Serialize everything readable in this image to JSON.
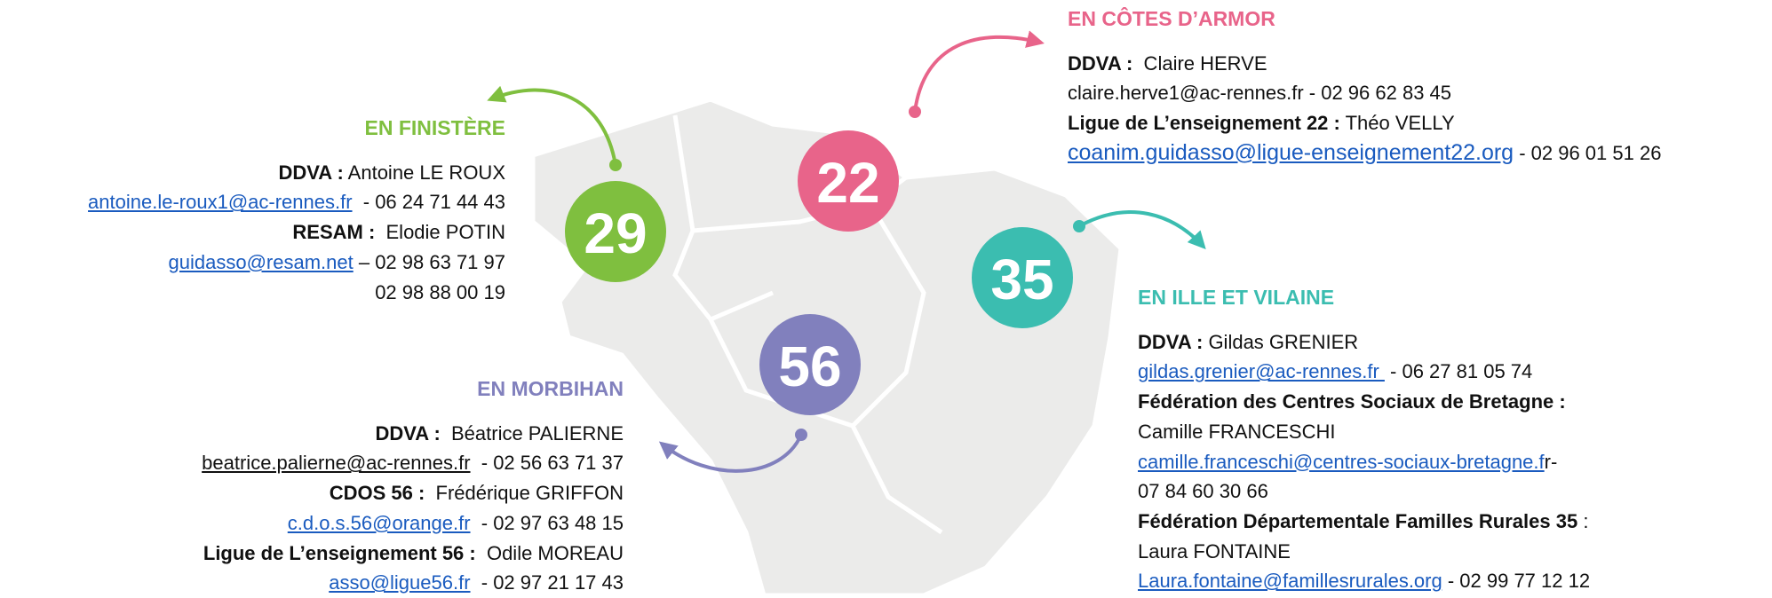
{
  "regions": [
    {
      "title": "EN FINISTÈRE",
      "badge": "29",
      "lines": [
        [
          {
            "b": "DDVA :"
          },
          {
            "t": " Antoine LE ROUX"
          }
        ],
        [
          {
            "a": "antoine.le-roux1@ac-rennes.fr"
          },
          {
            "t": "  - 06 24 71 44 43"
          }
        ],
        [
          {
            "b": "RESAM :"
          },
          {
            "t": "  Elodie POTIN"
          }
        ],
        [
          {
            "a": "guidasso@resam.net"
          },
          {
            "t": " – 02 98 63 71 97"
          }
        ],
        [
          {
            "t": "02 98 88 00 19"
          }
        ]
      ]
    },
    {
      "title": "EN CÔTES D’ARMOR",
      "badge": "22",
      "lines": [
        [
          {
            "b": "DDVA :"
          },
          {
            "t": "  Claire HERVE"
          }
        ],
        [
          {
            "t": "claire.herve1@ac-rennes.fr - 02 96 62 83 45"
          }
        ],
        [
          {
            "b": "Ligue de L’enseignement 22 :"
          },
          {
            "t": " Théo VELLY"
          }
        ],
        [
          {
            "a": "coanim.guidasso@ligue-enseignement22.org"
          },
          {
            "t": " - 02 96 01 51 26"
          }
        ]
      ]
    },
    {
      "title": "EN ILLE ET VILAINE",
      "badge": "35",
      "lines": [
        [
          {
            "b": "DDVA :"
          },
          {
            "t": " Gildas GRENIER"
          }
        ],
        [
          {
            "a": "gildas.grenier@ac-rennes.fr "
          },
          {
            "t": " - 06 27 81 05 74"
          }
        ],
        [
          {
            "b": "Fédération des Centres Sociaux de Bretagne :"
          }
        ],
        [
          {
            "t": "Camille FRANCESCHI"
          }
        ],
        [
          {
            "a": "camille.franceschi@centres-sociaux-bretagne.f"
          },
          {
            "t": "r-"
          }
        ],
        [
          {
            "t": "07 84 60 30 66"
          }
        ],
        [
          {
            "b": "Fédération Départementale Familles Rurales 35"
          },
          {
            "t": " :"
          }
        ],
        [
          {
            "t": "Laura FONTAINE"
          }
        ],
        [
          {
            "a": "Laura.fontaine@famillesrurales.org"
          },
          {
            "t": " - 02 99 77 12 12"
          }
        ]
      ]
    },
    {
      "title": "EN MORBIHAN",
      "badge": "56",
      "lines": [
        [
          {
            "b": "DDVA :"
          },
          {
            "t": "  Béatrice PALIERNE"
          }
        ],
        [
          {
            "u": "beatrice.palierne@ac-rennes.fr"
          },
          {
            "t": "  - 02 56 63 71 37"
          }
        ],
        [
          {
            "b": "CDOS 56 :"
          },
          {
            "t": "  Frédérique GRIFFON"
          }
        ],
        [
          {
            "a": "c.d.o.s.56@orange.fr"
          },
          {
            "t": "  - 02 97 63 48 15"
          }
        ],
        [
          {
            "b": "Ligue de L’enseignement 56 :"
          },
          {
            "t": "  Odile MOREAU"
          }
        ],
        [
          {
            "a": "asso@ligue56.fr"
          },
          {
            "t": "  - 02 97 21 17 43"
          }
        ]
      ]
    }
  ]
}
